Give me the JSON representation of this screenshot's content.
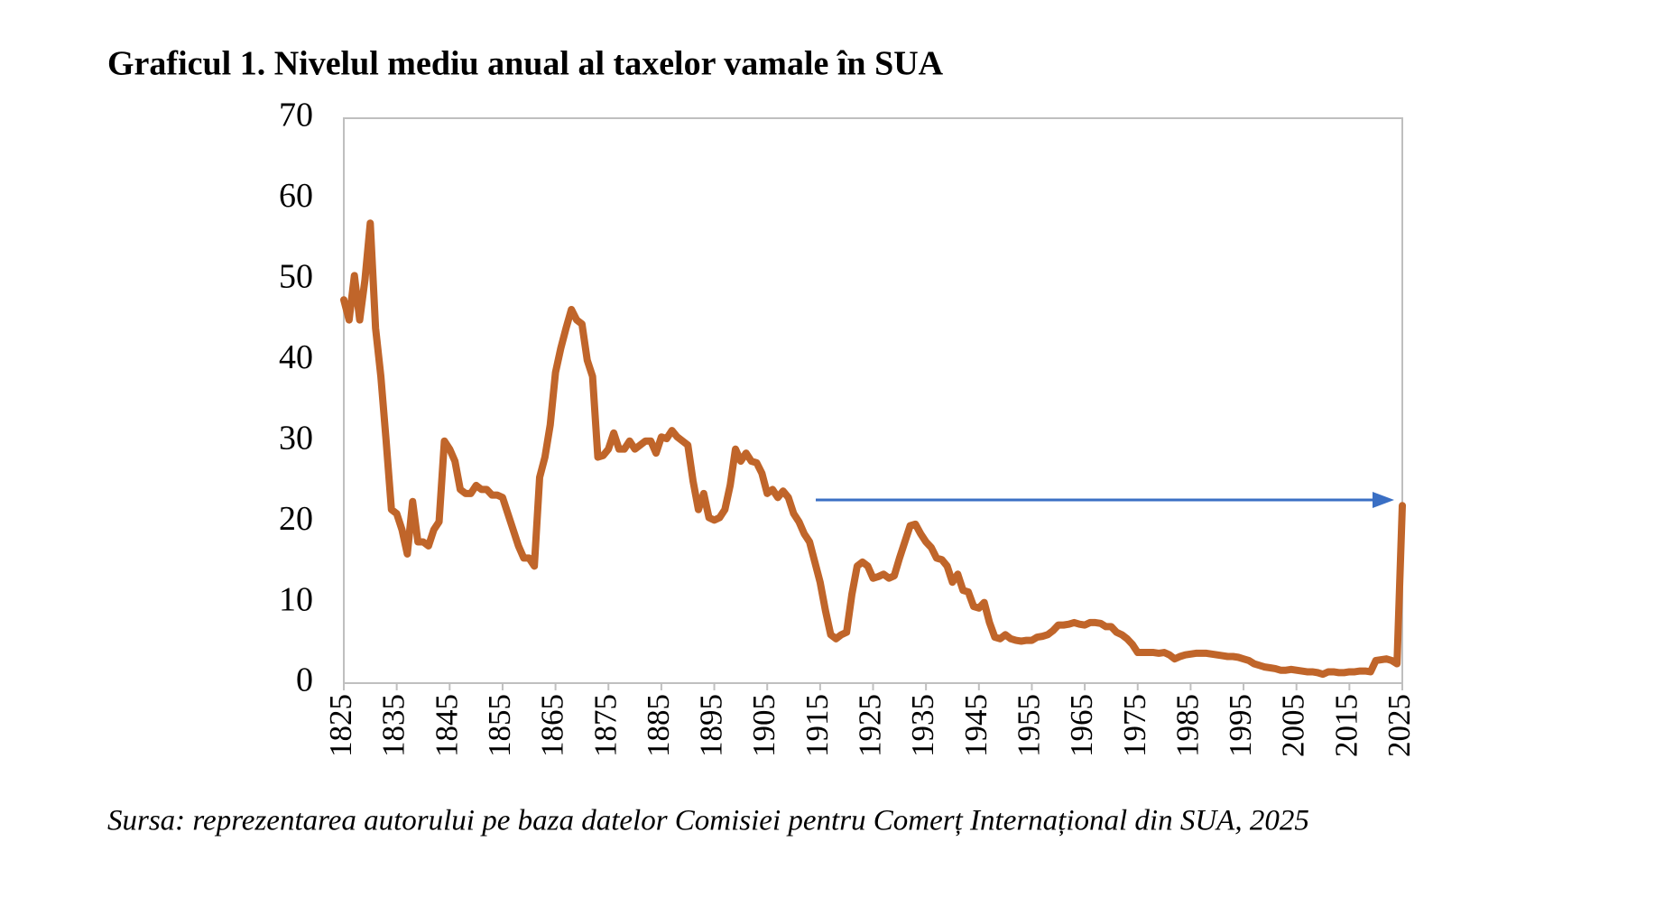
{
  "chart_data": {
    "type": "line",
    "title": "Graficul 1. Nivelul mediu anual al taxelor vamale în SUA",
    "source": "Sursa: reprezentarea autorului pe baza datelor Comisiei pentru Comerț Internațional din SUA, 2025",
    "color": "#c0652a",
    "x": [
      1825,
      1826,
      1827,
      1828,
      1829,
      1830,
      1831,
      1832,
      1833,
      1834,
      1835,
      1836,
      1837,
      1838,
      1839,
      1840,
      1841,
      1842,
      1843,
      1844,
      1845,
      1846,
      1847,
      1848,
      1849,
      1850,
      1851,
      1852,
      1853,
      1854,
      1855,
      1856,
      1857,
      1858,
      1859,
      1860,
      1861,
      1862,
      1863,
      1864,
      1865,
      1866,
      1867,
      1868,
      1869,
      1870,
      1871,
      1872,
      1873,
      1874,
      1875,
      1876,
      1877,
      1878,
      1879,
      1880,
      1881,
      1882,
      1883,
      1884,
      1885,
      1886,
      1887,
      1888,
      1889,
      1890,
      1891,
      1892,
      1893,
      1894,
      1895,
      1896,
      1897,
      1898,
      1899,
      1900,
      1901,
      1902,
      1903,
      1904,
      1905,
      1906,
      1907,
      1908,
      1909,
      1910,
      1911,
      1912,
      1913,
      1914,
      1915,
      1916,
      1917,
      1918,
      1919,
      1920,
      1921,
      1922,
      1923,
      1924,
      1925,
      1926,
      1927,
      1928,
      1929,
      1930,
      1931,
      1932,
      1933,
      1934,
      1935,
      1936,
      1937,
      1938,
      1939,
      1940,
      1941,
      1942,
      1943,
      1944,
      1945,
      1946,
      1947,
      1948,
      1949,
      1950,
      1951,
      1952,
      1953,
      1954,
      1955,
      1956,
      1957,
      1958,
      1959,
      1960,
      1961,
      1962,
      1963,
      1964,
      1965,
      1966,
      1967,
      1968,
      1969,
      1970,
      1971,
      1972,
      1973,
      1974,
      1975,
      1976,
      1977,
      1978,
      1979,
      1980,
      1981,
      1982,
      1983,
      1984,
      1985,
      1986,
      1987,
      1988,
      1989,
      1990,
      1991,
      1992,
      1993,
      1994,
      1995,
      1996,
      1997,
      1998,
      1999,
      2000,
      2001,
      2002,
      2003,
      2004,
      2005,
      2006,
      2007,
      2008,
      2009,
      2010,
      2011,
      2012,
      2013,
      2014,
      2015,
      2016,
      2017,
      2018,
      2019,
      2020,
      2021,
      2022,
      2023,
      2024,
      2025
    ],
    "values": [
      47.5,
      45,
      50.5,
      45,
      50,
      57,
      44,
      38,
      30,
      21.5,
      21,
      19,
      16,
      22.5,
      17.5,
      17.5,
      17,
      19,
      20,
      30,
      29,
      27.5,
      24,
      23.5,
      23.5,
      24.5,
      24,
      24,
      23.3,
      23.3,
      23,
      21,
      19,
      17,
      15.5,
      15.5,
      14.5,
      25.5,
      28,
      32,
      38.5,
      41.5,
      44,
      46.3,
      45,
      44.5,
      40,
      38,
      28,
      28.2,
      29,
      31,
      29,
      29,
      30,
      29,
      29.5,
      30,
      30,
      28.5,
      30.5,
      30.3,
      31.3,
      30.5,
      30,
      29.5,
      25,
      21.5,
      23.5,
      20.5,
      20.2,
      20.5,
      21.5,
      24.5,
      29,
      27.5,
      28.5,
      27.5,
      27.3,
      26,
      23.5,
      24,
      23,
      23.8,
      23,
      21,
      20,
      18.5,
      17.5,
      15,
      12.5,
      9,
      6,
      5.5,
      6,
      6.3,
      11,
      14.5,
      15,
      14.5,
      13,
      13.2,
      13.5,
      13,
      13.3,
      15.5,
      17.5,
      19.5,
      19.7,
      18.5,
      17.5,
      16.8,
      15.5,
      15.3,
      14.5,
      12.5,
      13.5,
      11.5,
      11.3,
      9.5,
      9.3,
      10,
      7.5,
      5.7,
      5.5,
      6,
      5.5,
      5.3,
      5.2,
      5.3,
      5.3,
      5.7,
      5.8,
      6,
      6.5,
      7.2,
      7.2,
      7.3,
      7.5,
      7.3,
      7.2,
      7.5,
      7.5,
      7.4,
      7,
      7,
      6.3,
      6,
      5.5,
      4.8,
      3.8,
      3.8,
      3.8,
      3.8,
      3.7,
      3.8,
      3.5,
      3,
      3.3,
      3.5,
      3.6,
      3.7,
      3.7,
      3.7,
      3.6,
      3.5,
      3.4,
      3.3,
      3.3,
      3.2,
      3,
      2.8,
      2.4,
      2.2,
      2,
      1.9,
      1.8,
      1.6,
      1.6,
      1.7,
      1.6,
      1.5,
      1.4,
      1.4,
      1.3,
      1.1,
      1.4,
      1.4,
      1.3,
      1.3,
      1.4,
      1.4,
      1.5,
      1.5,
      1.4,
      2.8,
      2.9,
      3,
      2.8,
      2.4,
      22
    ],
    "xlim": [
      1825,
      2025
    ],
    "xticks": [
      1825,
      1835,
      1845,
      1855,
      1865,
      1875,
      1885,
      1895,
      1905,
      1915,
      1925,
      1935,
      1945,
      1955,
      1965,
      1975,
      1985,
      1995,
      2005,
      2015,
      2025
    ],
    "ylim": [
      0,
      70
    ],
    "yticks": [
      0,
      10,
      20,
      30,
      40,
      50,
      60,
      70
    ],
    "grid": false
  }
}
